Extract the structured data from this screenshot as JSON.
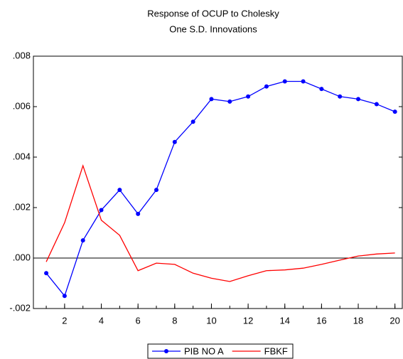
{
  "chart_data": {
    "type": "line",
    "title": "Response of OCUP to Cholesky",
    "subtitle": "One S.D. Innovations",
    "x": [
      1,
      2,
      3,
      4,
      5,
      6,
      7,
      8,
      9,
      10,
      11,
      12,
      13,
      14,
      15,
      16,
      17,
      18,
      19,
      20
    ],
    "series": [
      {
        "name": "PIB NO A",
        "color": "#0000ff",
        "marker": true,
        "values": [
          -0.0006,
          -0.0015,
          0.0007,
          0.0019,
          0.0027,
          0.00175,
          0.0027,
          0.0046,
          0.0054,
          0.0063,
          0.0062,
          0.0064,
          0.0068,
          0.007,
          0.007,
          0.0067,
          0.0064,
          0.0063,
          0.0061,
          0.0058
        ]
      },
      {
        "name": "FBKF",
        "color": "#ff0000",
        "marker": false,
        "values": [
          -0.00015,
          0.0014,
          0.00366,
          0.0015,
          0.0009,
          -0.0005,
          -0.0002,
          -0.00025,
          -0.0006,
          -0.0008,
          -0.00093,
          -0.0007,
          -0.0005,
          -0.00047,
          -0.0004,
          -0.00025,
          -8e-05,
          8e-05,
          0.00016,
          0.0002
        ]
      }
    ],
    "xlim": [
      0.3,
      20.4
    ],
    "xticks": [
      2,
      4,
      6,
      8,
      10,
      12,
      14,
      16,
      18,
      20
    ],
    "ylim": [
      -0.002,
      0.008
    ],
    "yticks": [
      {
        "value": -0.002,
        "label": "-.002"
      },
      {
        "value": 0,
        "label": ".000"
      },
      {
        "value": 0.002,
        "label": ".002"
      },
      {
        "value": 0.004,
        "label": ".004"
      },
      {
        "value": 0.006,
        "label": ".006"
      },
      {
        "value": 0.008,
        "label": ".008"
      }
    ],
    "grid": false
  }
}
